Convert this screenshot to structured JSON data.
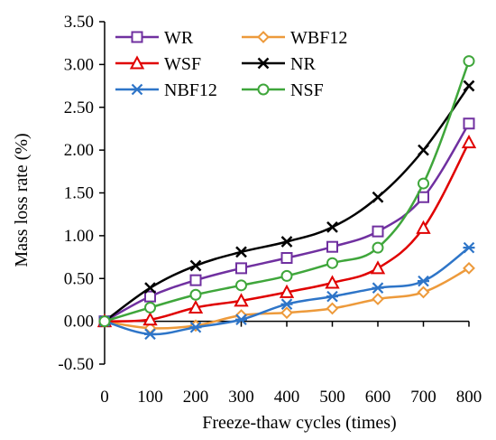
{
  "chart_data": {
    "type": "line",
    "xlabel": "Freeze-thaw cycles  (times)",
    "ylabel": "Mass loss rate  (%)",
    "xlim": [
      0,
      800
    ],
    "ylim": [
      -0.5,
      3.5
    ],
    "x_ticks": [
      "0",
      "100",
      "200",
      "300",
      "400",
      "500",
      "600",
      "700",
      "800"
    ],
    "y_ticks": [
      "-0.50",
      "0.00",
      "0.50",
      "1.00",
      "1.50",
      "2.00",
      "2.50",
      "3.00",
      "3.50"
    ],
    "grid": false,
    "legend_position": "top-left",
    "x": [
      0,
      100,
      200,
      300,
      400,
      500,
      600,
      700,
      800
    ],
    "series": [
      {
        "name": "WR",
        "color": "#7030A0",
        "marker": "square",
        "values": [
          0,
          0.29,
          0.48,
          0.62,
          0.74,
          0.87,
          1.05,
          1.45,
          2.31
        ]
      },
      {
        "name": "WBF12",
        "color": "#ED9A3B",
        "marker": "diamond",
        "values": [
          0,
          -0.08,
          -0.05,
          0.07,
          0.1,
          0.15,
          0.26,
          0.34,
          0.62
        ]
      },
      {
        "name": "WSF",
        "color": "#E00000",
        "marker": "triangle",
        "values": [
          0,
          0.02,
          0.16,
          0.24,
          0.34,
          0.45,
          0.62,
          1.09,
          2.09
        ]
      },
      {
        "name": "NR",
        "color": "#000000",
        "marker": "x",
        "values": [
          0,
          0.39,
          0.65,
          0.81,
          0.93,
          1.1,
          1.45,
          2.0,
          2.75
        ]
      },
      {
        "name": "NBF12",
        "color": "#2E75C8",
        "marker": "asterisk",
        "values": [
          0,
          -0.15,
          -0.07,
          0.02,
          0.2,
          0.29,
          0.39,
          0.47,
          0.86
        ]
      },
      {
        "name": "NSF",
        "color": "#3FA63B",
        "marker": "circle",
        "values": [
          0,
          0.16,
          0.31,
          0.42,
          0.53,
          0.68,
          0.86,
          1.61,
          3.04
        ]
      }
    ]
  }
}
